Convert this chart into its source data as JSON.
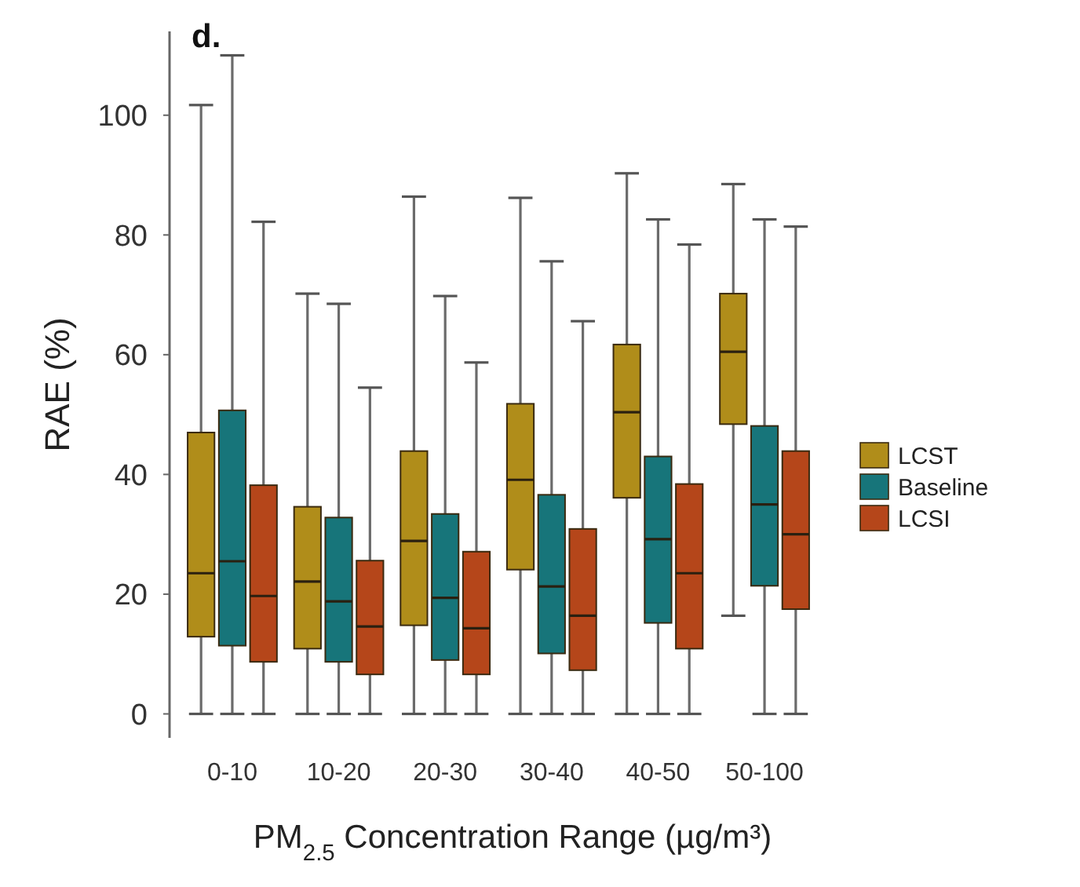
{
  "chart_data": {
    "type": "box",
    "title": "d.",
    "xlabel": "PM$_{2.5}$ Concentration Range (µg/m³)",
    "ylabel": "RAE (%)",
    "categories": [
      "0-10",
      "10-20",
      "20-30",
      "30-40",
      "40-50",
      "50-100"
    ],
    "ylim": [
      -4,
      114
    ],
    "yticks": [
      0,
      20,
      40,
      60,
      80,
      100
    ],
    "grid": false,
    "legend": "right",
    "series": [
      {
        "name": "LCST",
        "color": "#b08d1a",
        "boxes": [
          {
            "low": 0,
            "q1": 12.9,
            "median": 23.5,
            "q3": 47,
            "high": 101.7
          },
          {
            "low": 0,
            "q1": 10.9,
            "median": 22.1,
            "q3": 34.6,
            "high": 70.2
          },
          {
            "low": 0,
            "q1": 14.8,
            "median": 28.9,
            "q3": 43.9,
            "high": 86.4
          },
          {
            "low": 0,
            "q1": 24.1,
            "median": 39.1,
            "q3": 51.8,
            "high": 86.2
          },
          {
            "low": 0,
            "q1": 36.1,
            "median": 50.4,
            "q3": 61.7,
            "high": 90.3
          },
          {
            "low": 16.4,
            "q1": 48.4,
            "median": 60.5,
            "q3": 70.2,
            "high": 88.5
          }
        ]
      },
      {
        "name": "Baseline",
        "color": "#17757a",
        "boxes": [
          {
            "low": 0,
            "q1": 11.4,
            "median": 25.5,
            "q3": 50.7,
            "high": 110
          },
          {
            "low": 0,
            "q1": 8.7,
            "median": 18.8,
            "q3": 32.8,
            "high": 68.5
          },
          {
            "low": 0,
            "q1": 9,
            "median": 19.4,
            "q3": 33.4,
            "high": 69.8
          },
          {
            "low": 0,
            "q1": 10.1,
            "median": 21.3,
            "q3": 36.6,
            "high": 75.6
          },
          {
            "low": 0,
            "q1": 15.2,
            "median": 29.2,
            "q3": 43,
            "high": 82.6
          },
          {
            "low": 0,
            "q1": 21.4,
            "median": 35,
            "q3": 48.1,
            "high": 82.6
          }
        ]
      },
      {
        "name": "LCSI",
        "color": "#b5461a",
        "boxes": [
          {
            "low": 0,
            "q1": 8.7,
            "median": 19.7,
            "q3": 38.2,
            "high": 82.2
          },
          {
            "low": 0,
            "q1": 6.6,
            "median": 14.6,
            "q3": 25.6,
            "high": 54.5
          },
          {
            "low": 0,
            "q1": 6.6,
            "median": 14.3,
            "q3": 27.1,
            "high": 58.7
          },
          {
            "low": 0,
            "q1": 7.3,
            "median": 16.4,
            "q3": 30.9,
            "high": 65.6
          },
          {
            "low": 0,
            "q1": 10.9,
            "median": 23.5,
            "q3": 38.4,
            "high": 78.4
          },
          {
            "low": 0,
            "q1": 17.5,
            "median": 30,
            "q3": 43.9,
            "high": 81.4
          }
        ]
      }
    ]
  }
}
